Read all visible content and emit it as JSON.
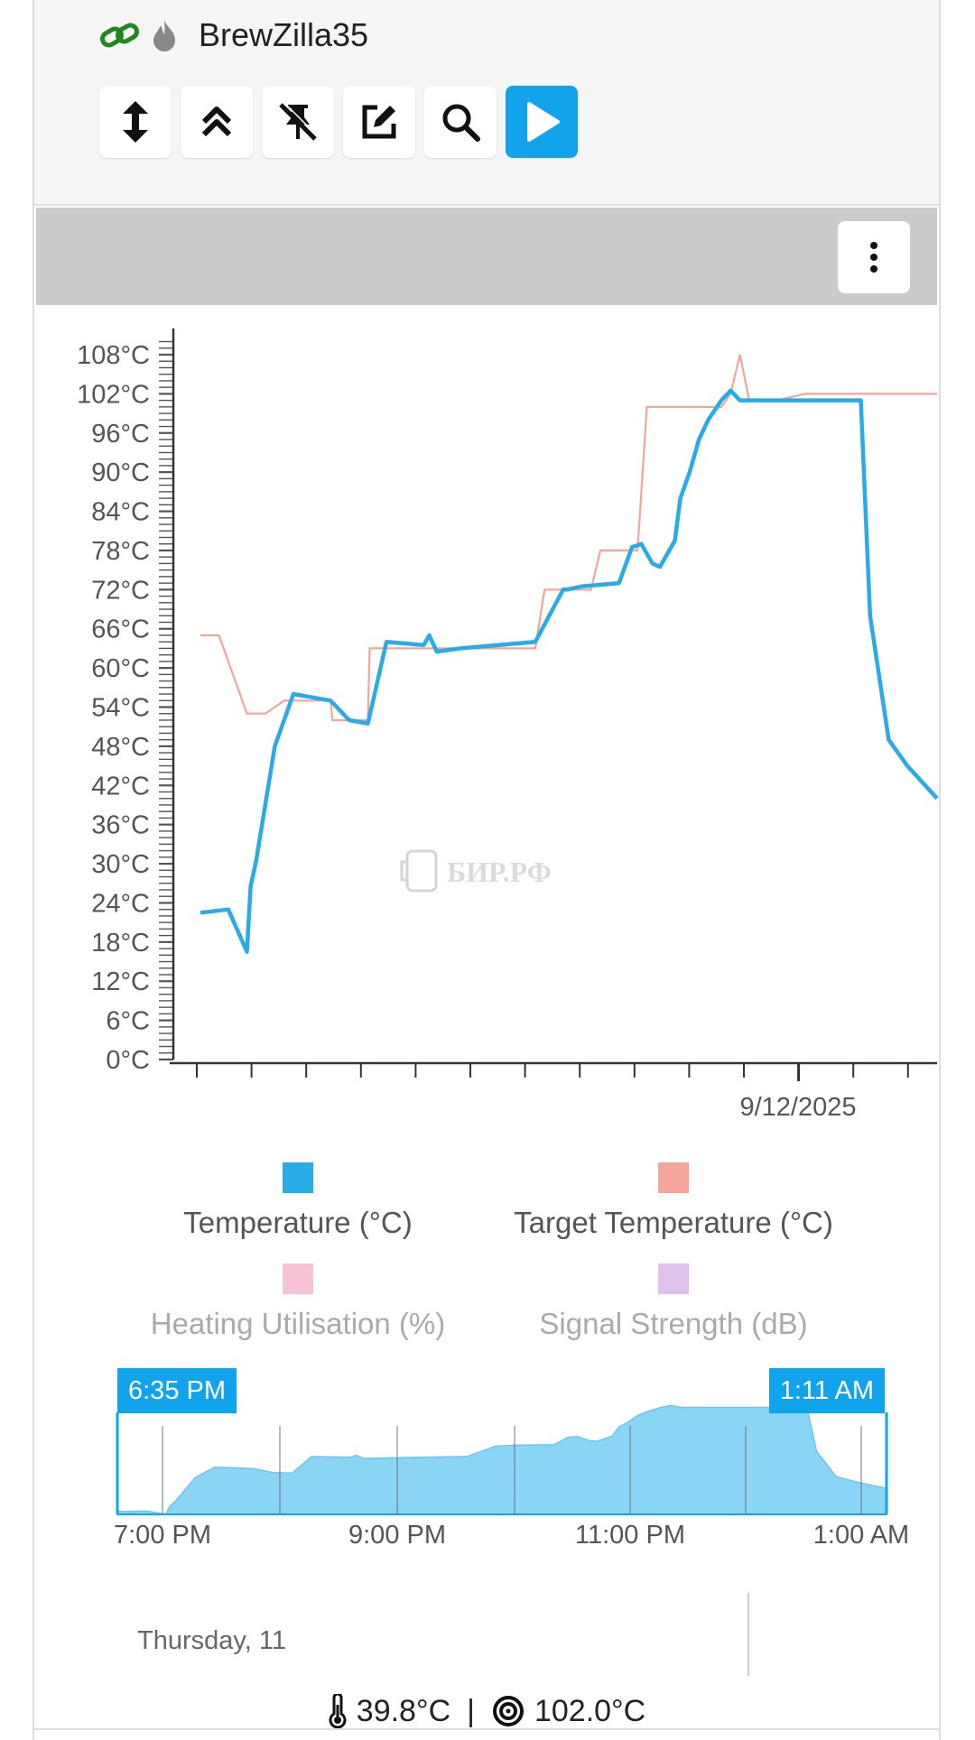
{
  "device": {
    "name": "BrewZilla35"
  },
  "toolbar": {
    "buttons": [
      {
        "icon": "arrows-vertical-icon"
      },
      {
        "icon": "double-chevron-up-icon"
      },
      {
        "icon": "unpin-icon"
      },
      {
        "icon": "edit-icon"
      },
      {
        "icon": "search-icon"
      },
      {
        "icon": "play-icon",
        "active": true
      }
    ]
  },
  "colors": {
    "temperature": "#29abe8",
    "target": "#f3a49b",
    "heating": "#f6c2d6",
    "signal": "#e0c3ea",
    "accent": "#11a4ec"
  },
  "chart_data": {
    "type": "line",
    "y_ticks": [
      "108°C",
      "102°C",
      "96°C",
      "90°C",
      "84°C",
      "78°C",
      "72°C",
      "66°C",
      "60°C",
      "54°C",
      "48°C",
      "42°C",
      "36°C",
      "30°C",
      "24°C",
      "18°C",
      "12°C",
      "6°C",
      "0°C"
    ],
    "ylim": [
      0,
      110
    ],
    "x_label": "9/12/2025",
    "series": [
      {
        "name": "Temperature (°C)",
        "x": [
          "18:35",
          "18:50",
          "19:00",
          "19:02",
          "19:05",
          "19:15",
          "19:25",
          "19:45",
          "19:55",
          "20:05",
          "20:15",
          "20:35",
          "20:38",
          "20:42",
          "20:55",
          "21:35",
          "21:50",
          "21:52",
          "22:00",
          "22:20",
          "22:27",
          "22:32",
          "22:38",
          "22:42",
          "22:50",
          "22:53",
          "22:58",
          "23:03",
          "23:08",
          "23:15",
          "23:20",
          "23:25",
          "23:40",
          "00:00",
          "00:30",
          "00:35",
          "00:45",
          "00:55",
          "01:11"
        ],
        "y": [
          22.5,
          23,
          16.5,
          26.5,
          30.5,
          48,
          56,
          55,
          52,
          51.5,
          64,
          63.5,
          65,
          62.5,
          63,
          64,
          72,
          72,
          72.5,
          73,
          78.5,
          79,
          76,
          75.5,
          79.5,
          86,
          90,
          95,
          98,
          101,
          102.5,
          101,
          101,
          101,
          101,
          68,
          49,
          45,
          40
        ]
      },
      {
        "name": "Target Temperature (°C)",
        "x": [
          "18:35",
          "18:45",
          "19:00",
          "19:10",
          "19:20",
          "19:30",
          "19:45",
          "19:46",
          "20:05",
          "20:06",
          "20:20",
          "20:35",
          "20:40",
          "21:00",
          "21:35",
          "21:40",
          "22:05",
          "22:10",
          "22:25",
          "22:30",
          "22:35",
          "23:15",
          "23:20",
          "23:25",
          "23:30",
          "23:45",
          "00:00",
          "01:11"
        ],
        "y": [
          65,
          65,
          53,
          53,
          55,
          55,
          55,
          52,
          52,
          63,
          63,
          63,
          63,
          63,
          63,
          72,
          72,
          78,
          78,
          78,
          100,
          100,
          102,
          108,
          101,
          101,
          102,
          102
        ]
      }
    ],
    "legend": [
      {
        "name": "Temperature (°C)",
        "color": "#29abe8",
        "enabled": true
      },
      {
        "name": "Target Temperature (°C)",
        "color": "#f3a49b",
        "enabled": true
      },
      {
        "name": "Heating Utilisation (%)",
        "color": "#f6c2d6",
        "enabled": false
      },
      {
        "name": "Signal Strength (dB)",
        "color": "#e0c3ea",
        "enabled": false
      }
    ],
    "watermark": "БИР.РФ"
  },
  "navigator": {
    "range_start": "6:35 PM",
    "range_end": "1:11 AM",
    "ticks": [
      "7:00 PM",
      "9:00 PM",
      "11:00 PM",
      "1:00 AM"
    ],
    "day_label": "Thursday, 11"
  },
  "status": {
    "current_temp": "39.8°C",
    "separator": "|",
    "target_temp": "102.0°C"
  }
}
